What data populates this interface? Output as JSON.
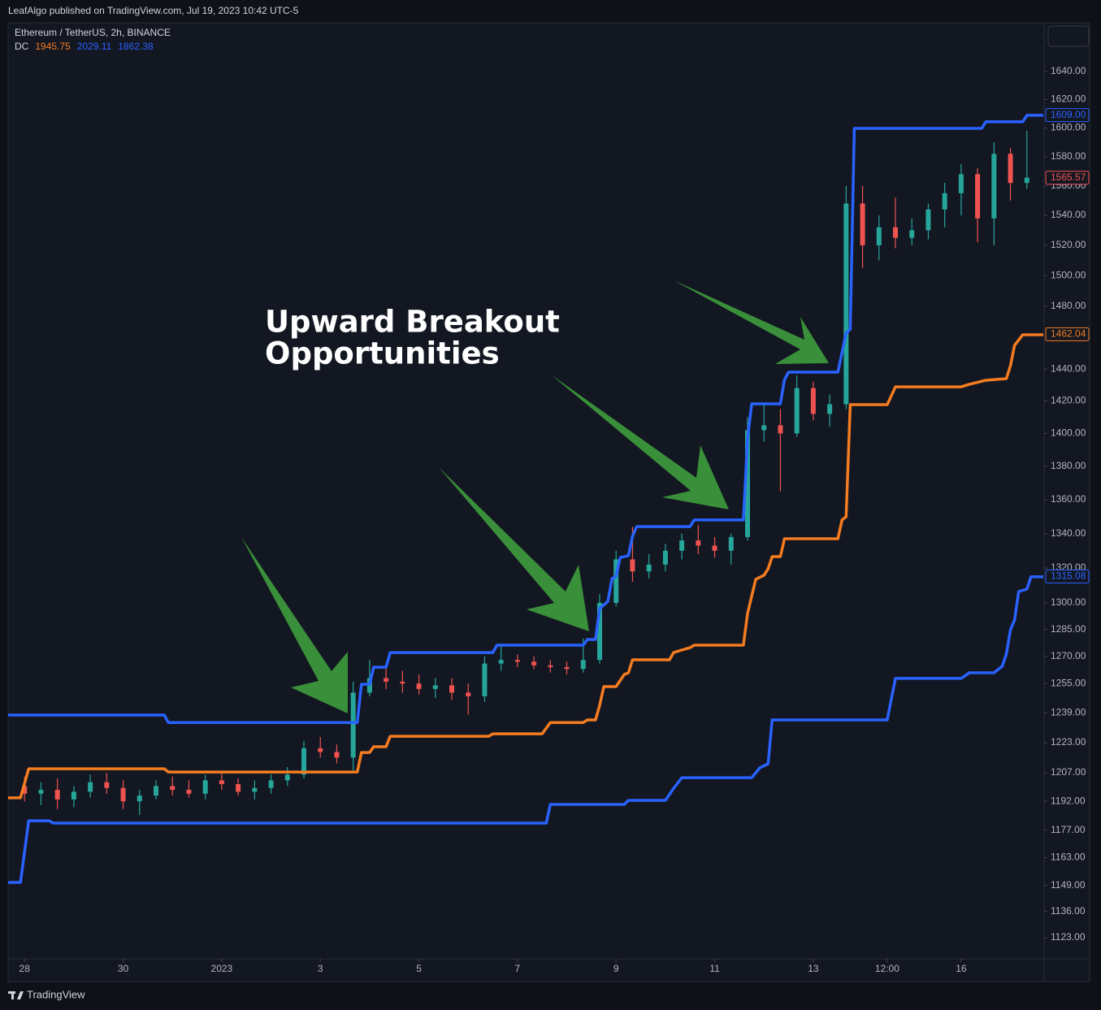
{
  "header": {
    "publisher": "LeafAlgo published on TradingView.com, Jul 19, 2023 10:42 UTC-5"
  },
  "footer": {
    "brand": "TradingView"
  },
  "chart_data": {
    "type": "candlestick",
    "title": "Ethereum / TetherUS, 2h, BINANCE",
    "indicator": {
      "name": "DC",
      "values": [
        1945.75,
        2029.11,
        1862.38
      ],
      "colors": [
        "#f57c1f",
        "#2962ff",
        "#2962ff"
      ]
    },
    "annotation": [
      "Upward Breakout",
      "Opportunities"
    ],
    "log_scale": true,
    "grid": false,
    "xlim": [
      "2022-12-27T16:00",
      "2023-01-17T16:00"
    ],
    "xticks": [
      {
        "value": "2022-12-28T00:00",
        "label": "28"
      },
      {
        "value": "2022-12-30T00:00",
        "label": "30"
      },
      {
        "value": "2023-01-01T00:00",
        "label": "2023"
      },
      {
        "value": "2023-01-03T00:00",
        "label": "3"
      },
      {
        "value": "2023-01-05T00:00",
        "label": "5"
      },
      {
        "value": "2023-01-07T00:00",
        "label": "7"
      },
      {
        "value": "2023-01-09T00:00",
        "label": "9"
      },
      {
        "value": "2023-01-11T00:00",
        "label": "11"
      },
      {
        "value": "2023-01-13T00:00",
        "label": "13"
      },
      {
        "value": "2023-01-14T12:00",
        "label": "12:00"
      },
      {
        "value": "2023-01-16T00:00",
        "label": "16"
      }
    ],
    "ylim": [
      1112.7,
      1675.3
    ],
    "yticks": [
      {
        "value": 1640,
        "label": "1640.00"
      },
      {
        "value": 1620,
        "label": "1620.00"
      },
      {
        "value": 1600,
        "label": "1600.00"
      },
      {
        "value": 1580,
        "label": "1580.00"
      },
      {
        "value": 1560,
        "label": "1560.00"
      },
      {
        "value": 1540,
        "label": "1540.00"
      },
      {
        "value": 1520,
        "label": "1520.00"
      },
      {
        "value": 1500,
        "label": "1500.00"
      },
      {
        "value": 1480,
        "label": "1480.00"
      },
      {
        "value": 1440,
        "label": "1440.00"
      },
      {
        "value": 1420,
        "label": "1420.00"
      },
      {
        "value": 1400,
        "label": "1400.00"
      },
      {
        "value": 1380,
        "label": "1380.00"
      },
      {
        "value": 1360,
        "label": "1360.00"
      },
      {
        "value": 1340,
        "label": "1340.00"
      },
      {
        "value": 1320,
        "label": "1320.00"
      },
      {
        "value": 1300,
        "label": "1300.00"
      },
      {
        "value": 1285,
        "label": "1285.00"
      },
      {
        "value": 1270,
        "label": "1270.00"
      },
      {
        "value": 1255,
        "label": "1255.00"
      },
      {
        "value": 1239,
        "label": "1239.00"
      },
      {
        "value": 1223,
        "label": "1223.00"
      },
      {
        "value": 1207,
        "label": "1207.00"
      },
      {
        "value": 1192,
        "label": "1192.00"
      },
      {
        "value": 1177,
        "label": "1177.00"
      },
      {
        "value": 1163,
        "label": "1163.00"
      },
      {
        "value": 1149,
        "label": "1149.00"
      },
      {
        "value": 1136,
        "label": "1136.00"
      },
      {
        "value": 1123,
        "label": "1123.00"
      }
    ],
    "price_tags": [
      {
        "value": 1609,
        "label": "1609.00",
        "color": "#2962ff"
      },
      {
        "value": 1565.57,
        "label": "1565.57",
        "color": "#ef5350"
      },
      {
        "value": 1462.04,
        "label": "1462.04",
        "color": "#f57c1f"
      },
      {
        "value": 1315.08,
        "label": "1315.08",
        "color": "#2962ff"
      }
    ],
    "candles": {
      "up_color": "#26a69a",
      "down_color": "#ef5350",
      "x": [
        "2022-12-28T00:00",
        "2022-12-28T08:00",
        "2022-12-28T16:00",
        "2022-12-29T00:00",
        "2022-12-29T08:00",
        "2022-12-29T16:00",
        "2022-12-30T00:00",
        "2022-12-30T08:00",
        "2022-12-30T16:00",
        "2022-12-31T00:00",
        "2022-12-31T08:00",
        "2022-12-31T16:00",
        "2023-01-01T00:00",
        "2023-01-01T08:00",
        "2023-01-01T16:00",
        "2023-01-02T00:00",
        "2023-01-02T08:00",
        "2023-01-02T16:00",
        "2023-01-03T00:00",
        "2023-01-03T08:00",
        "2023-01-03T16:00",
        "2023-01-04T00:00",
        "2023-01-04T08:00",
        "2023-01-04T16:00",
        "2023-01-05T00:00",
        "2023-01-05T08:00",
        "2023-01-05T16:00",
        "2023-01-06T00:00",
        "2023-01-06T08:00",
        "2023-01-06T16:00",
        "2023-01-07T00:00",
        "2023-01-07T08:00",
        "2023-01-07T16:00",
        "2023-01-08T00:00",
        "2023-01-08T08:00",
        "2023-01-08T16:00",
        "2023-01-09T00:00",
        "2023-01-09T08:00",
        "2023-01-09T16:00",
        "2023-01-10T00:00",
        "2023-01-10T08:00",
        "2023-01-10T16:00",
        "2023-01-11T00:00",
        "2023-01-11T08:00",
        "2023-01-11T16:00",
        "2023-01-12T00:00",
        "2023-01-12T08:00",
        "2023-01-12T16:00",
        "2023-01-13T00:00",
        "2023-01-13T08:00",
        "2023-01-13T16:00",
        "2023-01-14T00:00",
        "2023-01-14T08:00",
        "2023-01-14T16:00",
        "2023-01-15T00:00",
        "2023-01-15T08:00",
        "2023-01-15T16:00",
        "2023-01-16T00:00",
        "2023-01-16T08:00",
        "2023-01-16T16:00",
        "2023-01-17T00:00",
        "2023-01-17T08:00"
      ],
      "ohlc": [
        [
          1200,
          1205,
          1192,
          1196
        ],
        [
          1196,
          1202,
          1190,
          1198
        ],
        [
          1198,
          1204,
          1188,
          1193
        ],
        [
          1193,
          1200,
          1189,
          1197
        ],
        [
          1197,
          1206,
          1194,
          1202
        ],
        [
          1202,
          1207,
          1196,
          1199
        ],
        [
          1199,
          1203,
          1188,
          1192
        ],
        [
          1192,
          1198,
          1185,
          1195
        ],
        [
          1195,
          1203,
          1193,
          1200
        ],
        [
          1200,
          1205,
          1195,
          1198
        ],
        [
          1198,
          1203,
          1194,
          1196
        ],
        [
          1196,
          1206,
          1193,
          1203
        ],
        [
          1203,
          1208,
          1198,
          1201
        ],
        [
          1201,
          1204,
          1195,
          1197
        ],
        [
          1197,
          1203,
          1193,
          1199
        ],
        [
          1199,
          1206,
          1196,
          1203
        ],
        [
          1203,
          1210,
          1200,
          1206
        ],
        [
          1206,
          1224,
          1204,
          1220
        ],
        [
          1220,
          1226,
          1215,
          1218
        ],
        [
          1218,
          1222,
          1212,
          1215
        ],
        [
          1215,
          1256,
          1208,
          1250
        ],
        [
          1250,
          1268,
          1248,
          1258
        ],
        [
          1258,
          1266,
          1252,
          1256
        ],
        [
          1256,
          1262,
          1250,
          1255
        ],
        [
          1255,
          1260,
          1249,
          1252
        ],
        [
          1252,
          1258,
          1247,
          1254
        ],
        [
          1254,
          1258,
          1246,
          1250
        ],
        [
          1250,
          1255,
          1238,
          1248
        ],
        [
          1248,
          1270,
          1245,
          1266
        ],
        [
          1266,
          1276,
          1262,
          1268
        ],
        [
          1268,
          1271,
          1264,
          1267
        ],
        [
          1267,
          1270,
          1263,
          1265
        ],
        [
          1265,
          1268,
          1261,
          1264
        ],
        [
          1264,
          1267,
          1260,
          1263
        ],
        [
          1263,
          1280,
          1261,
          1268
        ],
        [
          1268,
          1305,
          1266,
          1300
        ],
        [
          1300,
          1330,
          1298,
          1325
        ],
        [
          1325,
          1344,
          1312,
          1318
        ],
        [
          1318,
          1328,
          1314,
          1322
        ],
        [
          1322,
          1334,
          1318,
          1330
        ],
        [
          1330,
          1340,
          1325,
          1336
        ],
        [
          1336,
          1345,
          1328,
          1333
        ],
        [
          1333,
          1338,
          1326,
          1330
        ],
        [
          1330,
          1340,
          1322,
          1338
        ],
        [
          1338,
          1410,
          1336,
          1402
        ],
        [
          1402,
          1418,
          1395,
          1405
        ],
        [
          1405,
          1415,
          1365,
          1400
        ],
        [
          1400,
          1436,
          1398,
          1428
        ],
        [
          1428,
          1432,
          1408,
          1412
        ],
        [
          1412,
          1424,
          1404,
          1418
        ],
        [
          1418,
          1560,
          1415,
          1548
        ],
        [
          1548,
          1560,
          1505,
          1520
        ],
        [
          1520,
          1540,
          1510,
          1532
        ],
        [
          1532,
          1552,
          1518,
          1525
        ],
        [
          1525,
          1538,
          1520,
          1530
        ],
        [
          1530,
          1548,
          1524,
          1544
        ],
        [
          1544,
          1562,
          1532,
          1555
        ],
        [
          1555,
          1575,
          1540,
          1568
        ],
        [
          1568,
          1572,
          1522,
          1538
        ],
        [
          1538,
          1590,
          1520,
          1582
        ],
        [
          1582,
          1586,
          1550,
          1562
        ],
        [
          1562,
          1598,
          1558,
          1565.57
        ]
      ]
    },
    "series": [
      {
        "color": "#2962ff",
        "x": [
          "2022-12-27T16:00",
          "2022-12-30T20:00",
          "2022-12-30T22:00",
          "2023-01-03T18:00",
          "2023-01-03T20:00",
          "2023-01-04T00:00",
          "2023-01-04T02:00",
          "2023-01-04T08:00",
          "2023-01-04T10:00",
          "2023-01-06T12:00",
          "2023-01-06T14:00",
          "2023-01-08T08:00",
          "2023-01-08T10:00",
          "2023-01-08T14:00",
          "2023-01-08T16:00",
          "2023-01-08T20:00",
          "2023-01-08T22:00",
          "2023-01-09T00:00",
          "2023-01-09T02:00",
          "2023-01-09T06:00",
          "2023-01-09T08:00",
          "2023-01-09T10:00",
          "2023-01-10T12:00",
          "2023-01-10T14:00",
          "2023-01-11T14:00",
          "2023-01-11T16:00",
          "2023-01-11T18:00",
          "2023-01-12T08:00",
          "2023-01-12T10:00",
          "2023-01-12T12:00",
          "2023-01-13T12:00",
          "2023-01-13T16:00",
          "2023-01-13T18:00",
          "2023-01-13T20:00",
          "2023-01-16T10:00",
          "2023-01-16T12:00",
          "2023-01-17T06:00",
          "2023-01-17T08:00",
          "2023-01-17T16:00"
        ],
        "values": [
          1237.8,
          1237.8,
          1233.8,
          1233.8,
          1254.6,
          1254.6,
          1264.0,
          1264.0,
          1272.1,
          1272.1,
          1276.2,
          1276.2,
          1279.4,
          1279.4,
          1296.8,
          1300.9,
          1313.9,
          1315.3,
          1326.1,
          1327.1,
          1338.4,
          1344.1,
          1344.1,
          1348.0,
          1348.0,
          1396.7,
          1418.2,
          1418.2,
          1433.4,
          1438.0,
          1438.0,
          1462.7,
          1465.3,
          1599.7,
          1599.7,
          1604.3,
          1604.3,
          1608.9,
          1608.9
        ]
      },
      {
        "color": "#2962ff",
        "x": [
          "2022-12-27T16:00",
          "2022-12-27T22:00",
          "2022-12-28T02:00",
          "2022-12-28T12:00",
          "2022-12-28T14:00",
          "2023-01-07T14:00",
          "2023-01-07T16:00",
          "2023-01-09T04:00",
          "2023-01-09T06:00",
          "2023-01-10T00:00",
          "2023-01-10T04:00",
          "2023-01-10T08:00",
          "2023-01-11T18:00",
          "2023-01-11T22:00",
          "2023-01-12T02:00",
          "2023-01-12T04:00",
          "2023-01-14T12:00",
          "2023-01-14T16:00",
          "2023-01-16T00:00",
          "2023-01-16T04:00",
          "2023-01-16T16:00",
          "2023-01-16T20:00",
          "2023-01-16T22:00",
          "2023-01-17T00:00",
          "2023-01-17T02:00",
          "2023-01-17T04:00",
          "2023-01-17T08:00",
          "2023-01-17T10:00",
          "2023-01-17T16:00"
        ],
        "values": [
          1150.5,
          1150.5,
          1181.9,
          1181.9,
          1180.7,
          1180.7,
          1190.4,
          1190.4,
          1192.5,
          1192.5,
          1198.8,
          1204.4,
          1204.4,
          1209.6,
          1211.7,
          1235.2,
          1235.2,
          1257.8,
          1257.8,
          1260.9,
          1260.9,
          1264.5,
          1271.2,
          1284.9,
          1290.3,
          1306.5,
          1307.9,
          1314.9,
          1314.9
        ]
      },
      {
        "color": "#f57c1f",
        "x": [
          "2022-12-27T16:00",
          "2022-12-27T22:00",
          "2022-12-28T02:00",
          "2022-12-30T20:00",
          "2022-12-30T22:00",
          "2023-01-03T18:00",
          "2023-01-03T20:00",
          "2023-01-04T00:00",
          "2023-01-04T02:00",
          "2023-01-04T08:00",
          "2023-01-04T10:00",
          "2023-01-06T10:00",
          "2023-01-06T12:00",
          "2023-01-07T12:00",
          "2023-01-07T16:00",
          "2023-01-08T08:00",
          "2023-01-08T10:00",
          "2023-01-08T14:00",
          "2023-01-08T16:00",
          "2023-01-08T18:00",
          "2023-01-09T00:00",
          "2023-01-09T04:00",
          "2023-01-09T06:00",
          "2023-01-09T08:00",
          "2023-01-10T02:00",
          "2023-01-10T04:00",
          "2023-01-10T08:00",
          "2023-01-10T12:00",
          "2023-01-10T14:00",
          "2023-01-11T14:00",
          "2023-01-11T16:00",
          "2023-01-11T20:00",
          "2023-01-12T00:00",
          "2023-01-12T02:00",
          "2023-01-12T04:00",
          "2023-01-12T08:00",
          "2023-01-12T10:00",
          "2023-01-13T12:00",
          "2023-01-13T14:00",
          "2023-01-13T16:00",
          "2023-01-13T18:00",
          "2023-01-14T12:00",
          "2023-01-14T16:00",
          "2023-01-16T00:00",
          "2023-01-16T04:00",
          "2023-01-16T12:00",
          "2023-01-16T22:00",
          "2023-01-17T00:00",
          "2023-01-17T02:00",
          "2023-01-17T06:00",
          "2023-01-17T16:00"
        ],
        "values": [
          1193.8,
          1193.8,
          1209.1,
          1209.1,
          1207.4,
          1207.4,
          1217.7,
          1217.7,
          1220.8,
          1220.8,
          1226.4,
          1226.4,
          1227.7,
          1227.7,
          1233.8,
          1233.8,
          1235.2,
          1235.2,
          1243.1,
          1253.3,
          1253.3,
          1260.0,
          1260.9,
          1268.1,
          1268.1,
          1272.1,
          1273.5,
          1274.8,
          1276.2,
          1276.2,
          1294.0,
          1313.5,
          1315.8,
          1319.5,
          1326.6,
          1326.6,
          1337.0,
          1337.0,
          1348.0,
          1349.9,
          1417.7,
          1417.7,
          1428.8,
          1428.8,
          1430.4,
          1432.9,
          1433.9,
          1442.1,
          1455.0,
          1461.7,
          1461.7
        ]
      }
    ]
  }
}
